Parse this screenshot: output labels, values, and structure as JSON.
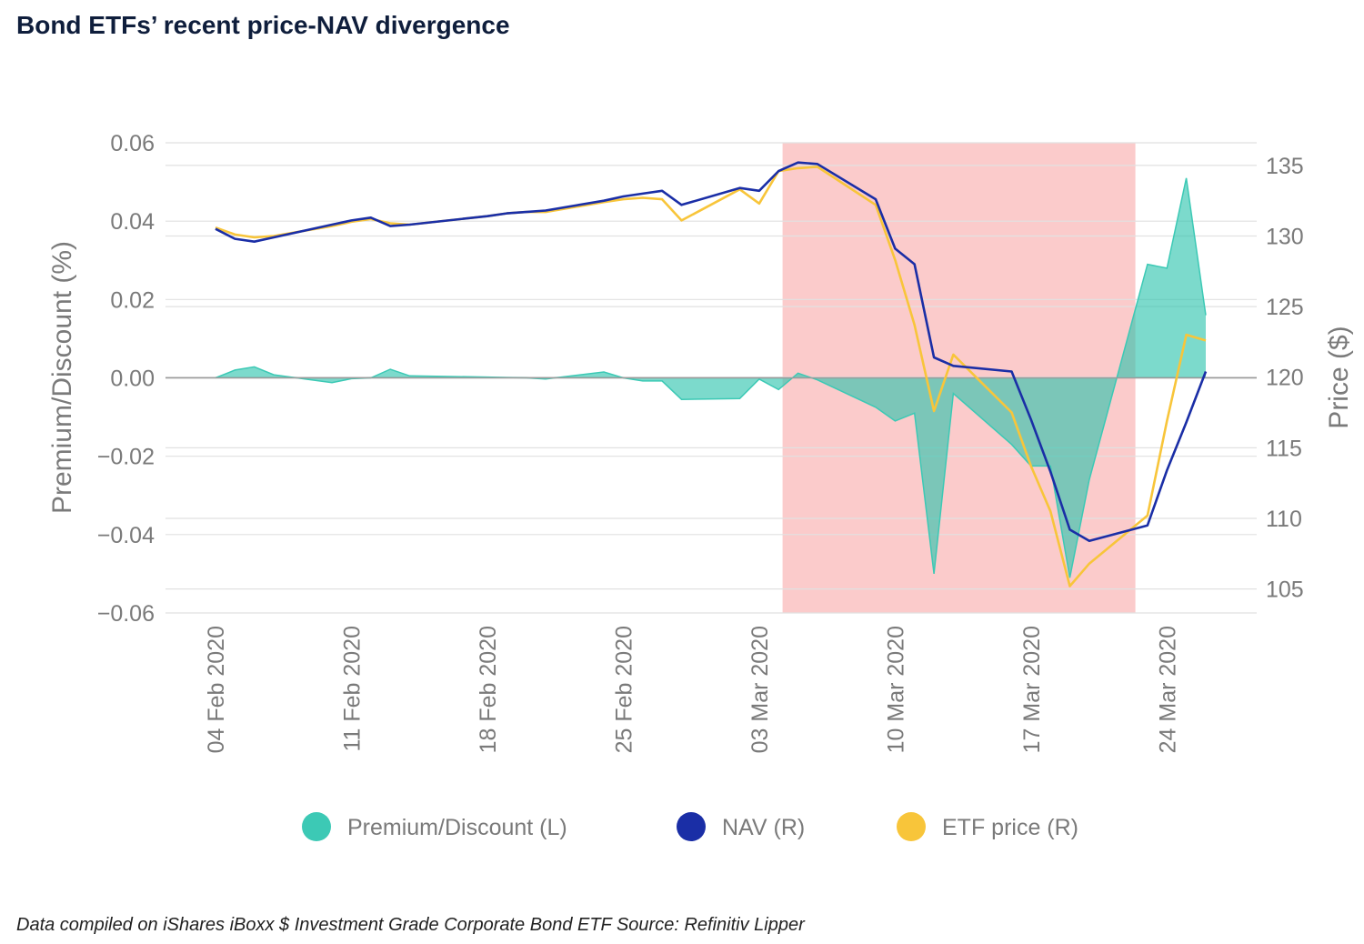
{
  "title": "Bond ETFs’ recent price-NAV divergence",
  "footnote": "Data compiled on iShares iBoxx $ Investment Grade Corporate Bond ETF Source: Refinitiv Lipper",
  "colors": {
    "premium": "#3cc9b5",
    "premium_fill": "#2cc4ad",
    "nav": "#1a2ea6",
    "etf_price": "#f8c53a",
    "highlight": "#f8a0a0",
    "grid": "#e1e1e1",
    "axis_text": "#7a7a7a"
  },
  "chart_data": {
    "type": "line",
    "left_axis": {
      "label": "Premium/Discount (%)",
      "range": [
        -0.06,
        0.06
      ],
      "ticks": [
        "0.06",
        "0.04",
        "0.02",
        "0.00",
        "−0.02",
        "−0.04",
        "−0.06"
      ],
      "tick_values": [
        0.06,
        0.04,
        0.02,
        0.0,
        -0.02,
        -0.04,
        -0.06
      ]
    },
    "right_axis": {
      "label": "Price ($)",
      "range": [
        103.3,
        136.6
      ],
      "ticks": [
        "135",
        "130",
        "125",
        "120",
        "115",
        "110",
        "105"
      ],
      "tick_values": [
        135,
        130,
        125,
        120,
        115,
        110,
        105
      ]
    },
    "x_axis": {
      "type": "date",
      "range": [
        "2020-02-04",
        "2020-03-26"
      ],
      "tick_labels": [
        "04 Feb 2020",
        "11 Feb 2020",
        "18 Feb 2020",
        "25 Feb 2020",
        "03 Mar 2020",
        "10 Mar 2020",
        "17 Mar 2020",
        "24 Mar 2020"
      ],
      "tick_dates": [
        "2020-02-04",
        "2020-02-11",
        "2020-02-18",
        "2020-02-25",
        "2020-03-03",
        "2020-03-10",
        "2020-03-17",
        "2020-03-24"
      ]
    },
    "highlight_range": [
      "2020-03-05",
      "2020-03-22"
    ],
    "dates": [
      "2020-02-04",
      "2020-02-05",
      "2020-02-06",
      "2020-02-07",
      "2020-02-10",
      "2020-02-11",
      "2020-02-12",
      "2020-02-13",
      "2020-02-14",
      "2020-02-18",
      "2020-02-19",
      "2020-02-20",
      "2020-02-21",
      "2020-02-24",
      "2020-02-25",
      "2020-02-26",
      "2020-02-27",
      "2020-02-28",
      "2020-03-02",
      "2020-03-03",
      "2020-03-04",
      "2020-03-05",
      "2020-03-06",
      "2020-03-09",
      "2020-03-10",
      "2020-03-11",
      "2020-03-12",
      "2020-03-13",
      "2020-03-16",
      "2020-03-17",
      "2020-03-18",
      "2020-03-19",
      "2020-03-20",
      "2020-03-23",
      "2020-03-24",
      "2020-03-25",
      "2020-03-26"
    ],
    "series": [
      {
        "name": "Premium/Discount (L)",
        "axis": "left",
        "style": "area",
        "values": [
          0.0,
          0.002,
          0.0028,
          0.0008,
          -0.0012,
          -0.0002,
          0.0,
          0.0022,
          0.0005,
          0.0002,
          0.0001,
          0.0,
          -0.0003,
          0.0015,
          0.0,
          -0.0008,
          -0.0008,
          -0.0055,
          -0.0053,
          -0.0003,
          -0.003,
          0.0012,
          -0.0005,
          -0.0075,
          -0.011,
          -0.009,
          -0.05,
          -0.004,
          -0.017,
          -0.0225,
          -0.0225,
          -0.051,
          -0.026,
          0.029,
          0.028,
          0.051,
          0.016
        ]
      },
      {
        "name": "NAV (R)",
        "axis": "right",
        "style": "line",
        "values": [
          130.5,
          129.8,
          129.6,
          129.9,
          130.8,
          131.1,
          131.3,
          130.7,
          130.8,
          131.4,
          131.6,
          131.7,
          131.8,
          132.5,
          132.8,
          133.0,
          133.2,
          132.2,
          133.4,
          133.2,
          134.6,
          135.2,
          135.1,
          132.6,
          129.1,
          128.0,
          121.4,
          120.8,
          120.4,
          117.0,
          113.3,
          109.2,
          108.4,
          109.5,
          113.4,
          116.8,
          120.4
        ]
      },
      {
        "name": "ETF price (R)",
        "axis": "right",
        "style": "line",
        "values": [
          130.6,
          130.1,
          129.9,
          130.0,
          130.7,
          131.0,
          131.2,
          130.9,
          130.8,
          131.4,
          131.6,
          131.7,
          131.7,
          132.4,
          132.6,
          132.7,
          132.6,
          131.1,
          133.3,
          132.3,
          134.6,
          134.8,
          134.9,
          132.2,
          128.3,
          123.7,
          117.6,
          121.6,
          117.5,
          113.7,
          110.5,
          105.2,
          106.8,
          110.2,
          116.9,
          123.0,
          122.6
        ]
      }
    ],
    "legend": {
      "position": "bottom",
      "items": [
        "Premium/Discount (L)",
        "NAV (R)",
        "ETF price (R)"
      ]
    }
  }
}
